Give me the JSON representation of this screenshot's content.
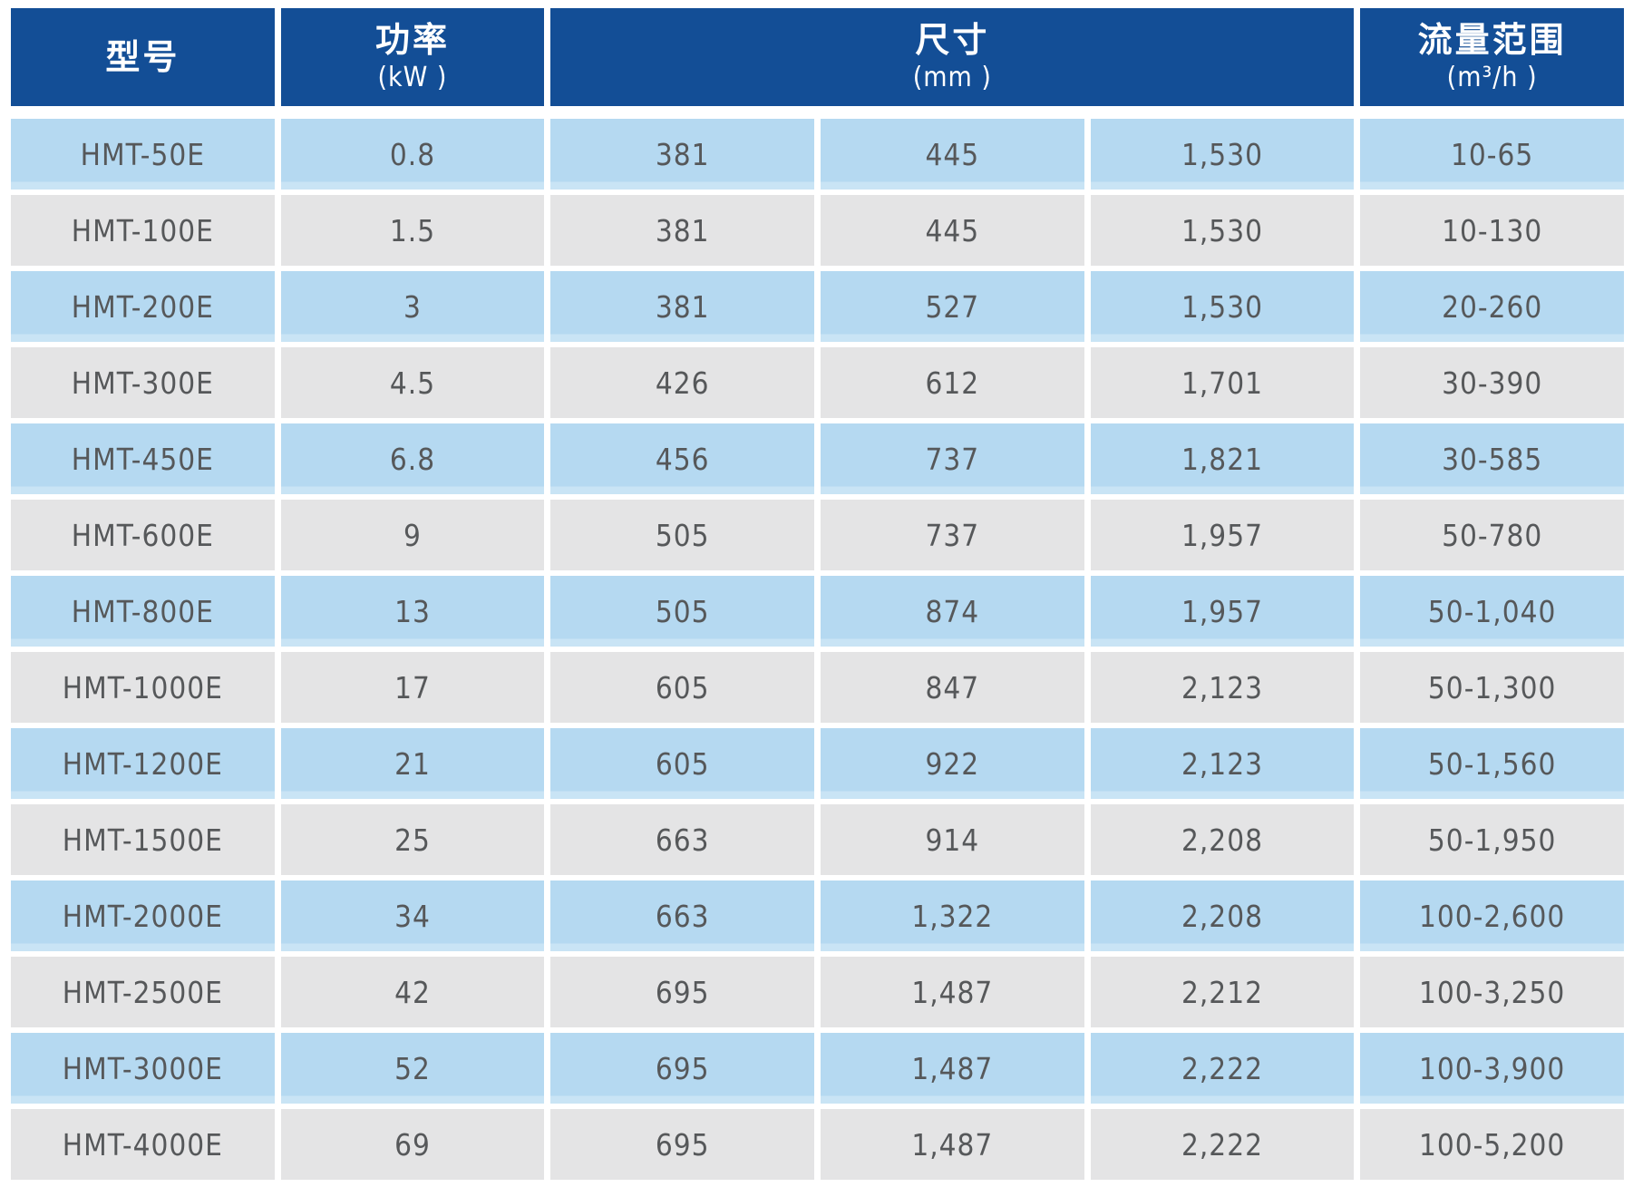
{
  "table": {
    "header": {
      "model": {
        "label": "型号",
        "unit": ""
      },
      "power": {
        "label": "功率",
        "unit": "(kW )"
      },
      "dimensions": {
        "label": "尺寸",
        "unit": "(mm )",
        "span": 3
      },
      "flow_range": {
        "label": "流量范围",
        "unit": "(m³/h )"
      }
    },
    "rows": [
      {
        "model": "HMT-50E",
        "power_kw": "0.8",
        "dims_mm": [
          "381",
          "445",
          "1,530"
        ],
        "flow_range_m3h": "10-65"
      },
      {
        "model": "HMT-100E",
        "power_kw": "1.5",
        "dims_mm": [
          "381",
          "445",
          "1,530"
        ],
        "flow_range_m3h": "10-130"
      },
      {
        "model": "HMT-200E",
        "power_kw": "3",
        "dims_mm": [
          "381",
          "527",
          "1,530"
        ],
        "flow_range_m3h": "20-260"
      },
      {
        "model": "HMT-300E",
        "power_kw": "4.5",
        "dims_mm": [
          "426",
          "612",
          "1,701"
        ],
        "flow_range_m3h": "30-390"
      },
      {
        "model": "HMT-450E",
        "power_kw": "6.8",
        "dims_mm": [
          "456",
          "737",
          "1,821"
        ],
        "flow_range_m3h": "30-585"
      },
      {
        "model": "HMT-600E",
        "power_kw": "9",
        "dims_mm": [
          "505",
          "737",
          "1,957"
        ],
        "flow_range_m3h": "50-780"
      },
      {
        "model": "HMT-800E",
        "power_kw": "13",
        "dims_mm": [
          "505",
          "874",
          "1,957"
        ],
        "flow_range_m3h": "50-1,040"
      },
      {
        "model": "HMT-1000E",
        "power_kw": "17",
        "dims_mm": [
          "605",
          "847",
          "2,123"
        ],
        "flow_range_m3h": "50-1,300"
      },
      {
        "model": "HMT-1200E",
        "power_kw": "21",
        "dims_mm": [
          "605",
          "922",
          "2,123"
        ],
        "flow_range_m3h": "50-1,560"
      },
      {
        "model": "HMT-1500E",
        "power_kw": "25",
        "dims_mm": [
          "663",
          "914",
          "2,208"
        ],
        "flow_range_m3h": "50-1,950"
      },
      {
        "model": "HMT-2000E",
        "power_kw": "34",
        "dims_mm": [
          "663",
          "1,322",
          "2,208"
        ],
        "flow_range_m3h": "100-2,600"
      },
      {
        "model": "HMT-2500E",
        "power_kw": "42",
        "dims_mm": [
          "695",
          "1,487",
          "2,212"
        ],
        "flow_range_m3h": "100-3,250"
      },
      {
        "model": "HMT-3000E",
        "power_kw": "52",
        "dims_mm": [
          "695",
          "1,487",
          "2,222"
        ],
        "flow_range_m3h": "100-3,900"
      },
      {
        "model": "HMT-4000E",
        "power_kw": "69",
        "dims_mm": [
          "695",
          "1,487",
          "2,222"
        ],
        "flow_range_m3h": "100-5,200"
      }
    ]
  },
  "colors": {
    "header_background": "#134E96",
    "header_text": "#FFFFFF",
    "row_blue": "#B5D9F1",
    "row_gray": "#E4E4E5",
    "body_text": "#56585A",
    "grid_gap": "#FFFFFF"
  }
}
